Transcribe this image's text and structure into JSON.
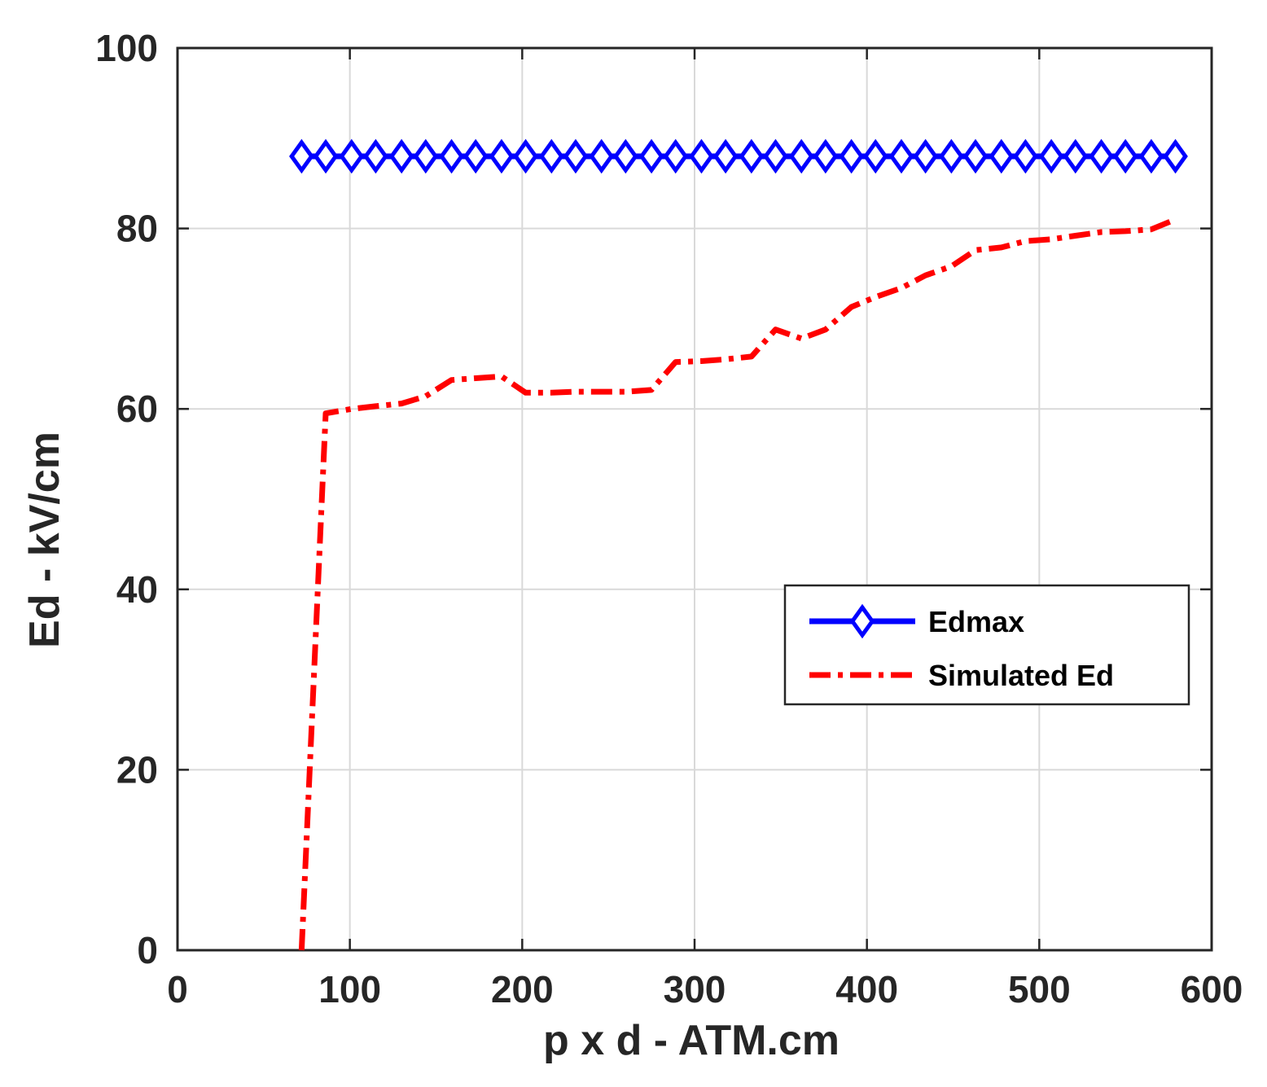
{
  "chart_data": {
    "type": "line",
    "xlabel": "p x d - ATM.cm",
    "ylabel": "Ed - kV/cm",
    "xlim": [
      0,
      600
    ],
    "ylim": [
      0,
      100
    ],
    "x_ticks": [
      "0",
      "100",
      "200",
      "300",
      "400",
      "500",
      "600"
    ],
    "y_ticks": [
      "0",
      "20",
      "40",
      "60",
      "80",
      "100"
    ],
    "grid": true,
    "legend_position": "right",
    "series": [
      {
        "name": "Edmax",
        "color": "#0000ff",
        "line_style": "solid",
        "marker": "diamond",
        "x": [
          72,
          86,
          101,
          115,
          130,
          144,
          159,
          173,
          188,
          202,
          217,
          231,
          246,
          260,
          275,
          289,
          304,
          318,
          333,
          347,
          362,
          376,
          391,
          405,
          420,
          434,
          449,
          463,
          478,
          492,
          507,
          521,
          536,
          550,
          565,
          579
        ],
        "y": [
          88,
          88,
          88,
          88,
          88,
          88,
          88,
          88,
          88,
          88,
          88,
          88,
          88,
          88,
          88,
          88,
          88,
          88,
          88,
          88,
          88,
          88,
          88,
          88,
          88,
          88,
          88,
          88,
          88,
          88,
          88,
          88,
          88,
          88,
          88,
          88
        ]
      },
      {
        "name": "Simulated Ed",
        "color": "#ff0000",
        "line_style": "dash-dot",
        "marker": "none",
        "x": [
          72,
          86,
          101,
          115,
          130,
          144,
          159,
          173,
          188,
          202,
          217,
          231,
          246,
          260,
          275,
          289,
          304,
          318,
          333,
          347,
          362,
          376,
          391,
          405,
          420,
          434,
          449,
          463,
          478,
          492,
          507,
          521,
          536,
          550,
          565,
          579
        ],
        "y": [
          0,
          59.5,
          60,
          60.3,
          60.6,
          61.4,
          63.2,
          63.4,
          63.6,
          61.8,
          61.8,
          61.9,
          61.9,
          61.9,
          62.1,
          65.2,
          65.3,
          65.5,
          65.8,
          68.8,
          67.8,
          68.8,
          71.3,
          72.4,
          73.4,
          74.8,
          75.8,
          77.6,
          77.9,
          78.6,
          78.8,
          79.2,
          79.6,
          79.7,
          79.9,
          81
        ]
      }
    ]
  }
}
